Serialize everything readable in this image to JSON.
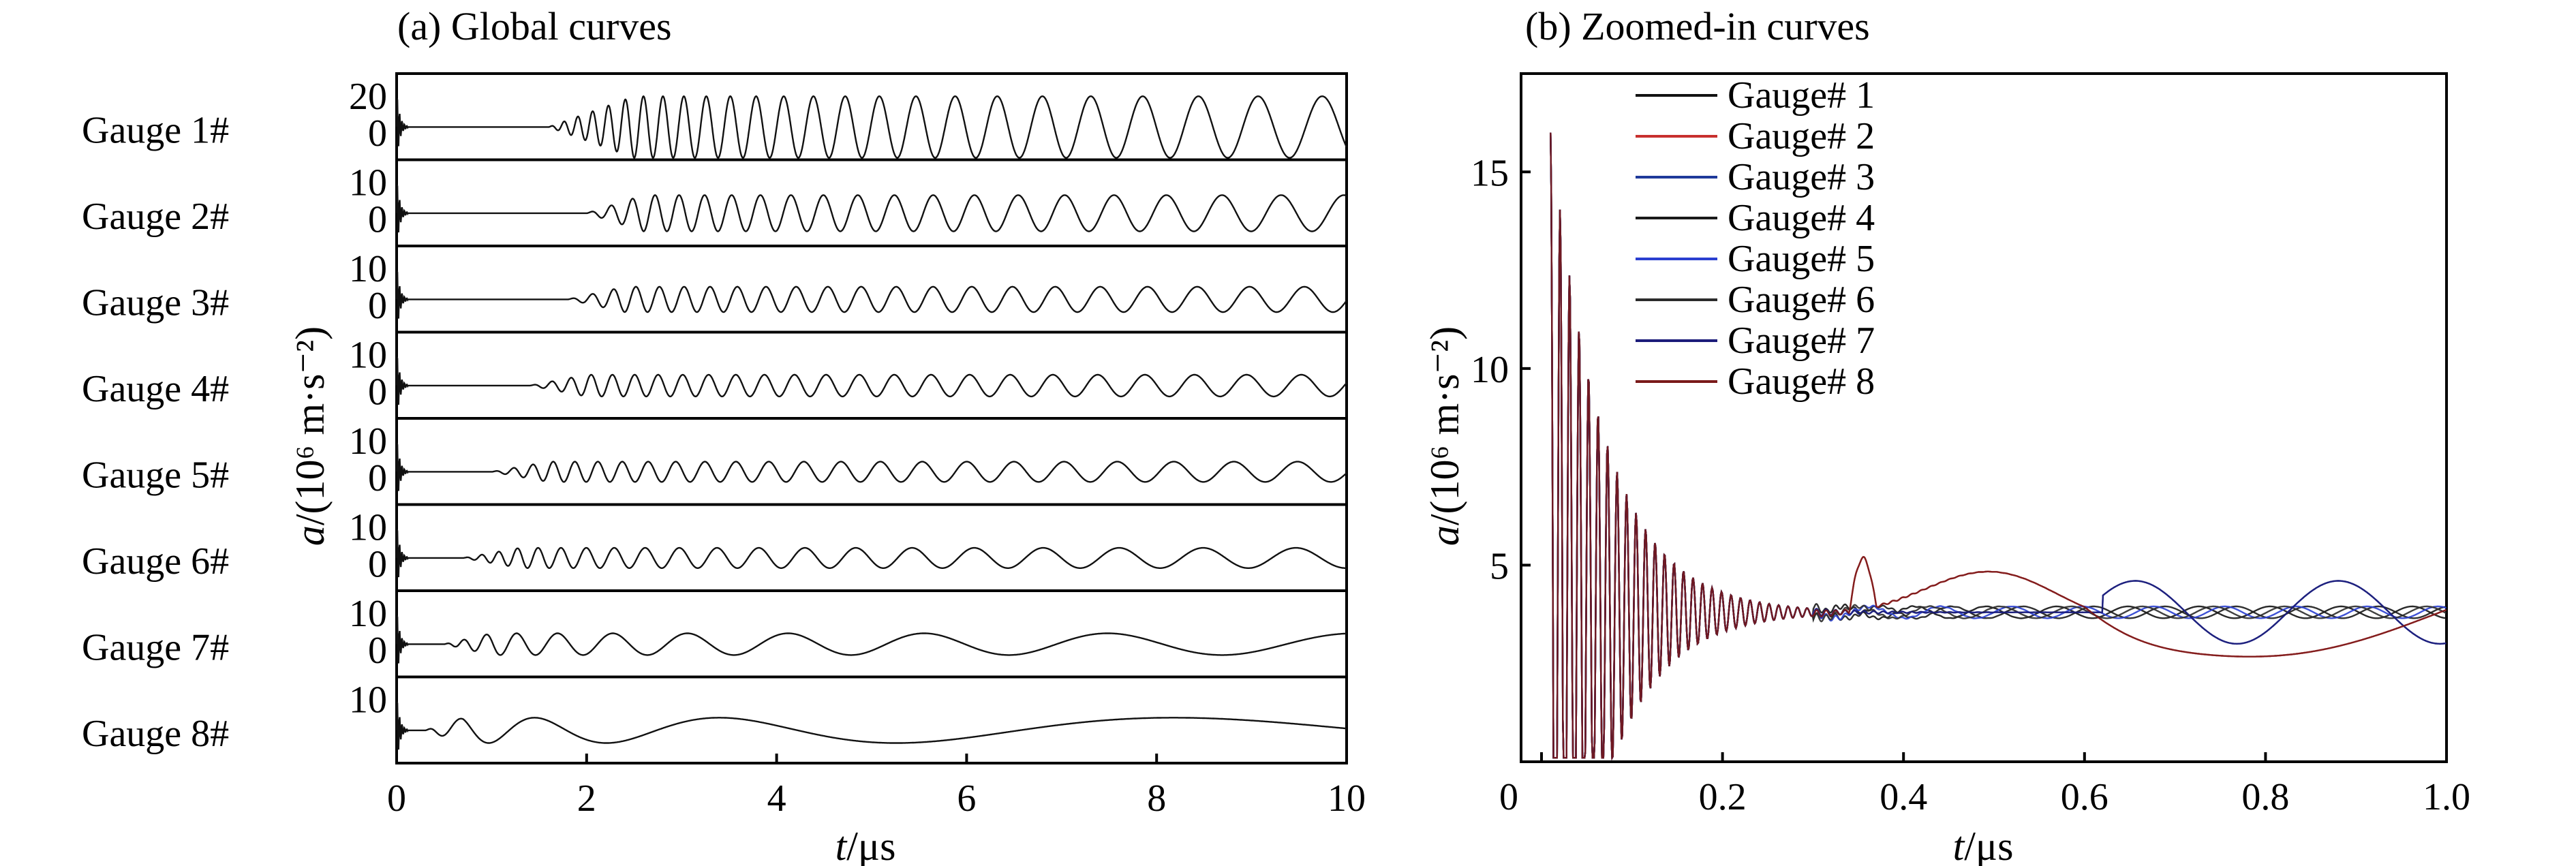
{
  "chart_data": [
    {
      "panel": "a",
      "type": "line",
      "title": "(a) Global curves",
      "xlabel_italic": "t",
      "xlabel_unit": "/μs",
      "ylabel_italic": "a",
      "ylabel_unit": "/(10⁶ m·s⁻²)",
      "xlim": [
        0,
        10
      ],
      "xticks": [
        "0",
        "2",
        "4",
        "6",
        "8",
        "10"
      ],
      "grid": false,
      "rows": [
        {
          "label": "Gauge 1#",
          "yticks": [
            "20",
            "0"
          ]
        },
        {
          "label": "Gauge 2#",
          "yticks": [
            "10",
            "0"
          ]
        },
        {
          "label": "Gauge 3#",
          "yticks": [
            "10",
            "0"
          ]
        },
        {
          "label": "Gauge 4#",
          "yticks": [
            "10",
            "0"
          ]
        },
        {
          "label": "Gauge 5#",
          "yticks": [
            "10",
            "0"
          ]
        },
        {
          "label": "Gauge 6#",
          "yticks": [
            "10",
            "0"
          ]
        },
        {
          "label": "Gauge 7#",
          "yticks": [
            "10",
            "0"
          ]
        },
        {
          "label": "Gauge 8#",
          "yticks": [
            "10"
          ]
        }
      ],
      "series_shape": [
        {
          "spike_t": 0.05,
          "calm_until": 1.6,
          "ring_start": 2.2,
          "amp": 0.85,
          "period_start": 0.17,
          "period_growth": 0.07
        },
        {
          "spike_t": 0.05,
          "calm_until": 2.0,
          "ring_start": 2.3,
          "amp": 0.5,
          "period_start": 0.22,
          "period_growth": 0.06
        },
        {
          "spike_t": 0.05,
          "calm_until": 1.8,
          "ring_start": 2.1,
          "amp": 0.35,
          "period_start": 0.22,
          "period_growth": 0.05
        },
        {
          "spike_t": 0.05,
          "calm_until": 1.4,
          "ring_start": 1.7,
          "amp": 0.3,
          "period_start": 0.2,
          "period_growth": 0.05
        },
        {
          "spike_t": 0.05,
          "calm_until": 1.0,
          "ring_start": 1.3,
          "amp": 0.28,
          "period_start": 0.2,
          "period_growth": 0.06
        },
        {
          "spike_t": 0.05,
          "calm_until": 0.7,
          "ring_start": 1.0,
          "amp": 0.28,
          "period_start": 0.18,
          "period_growth": 0.1
        },
        {
          "spike_t": 0.05,
          "calm_until": 0.5,
          "ring_start": 0.7,
          "amp": 0.3,
          "period_start": 0.2,
          "period_growth": 0.3
        },
        {
          "spike_t": 0.05,
          "calm_until": 0.3,
          "ring_start": 0.4,
          "amp": 0.35,
          "period_start": 0.25,
          "period_growth": 0.9
        }
      ]
    },
    {
      "panel": "b",
      "type": "line",
      "title": "(b) Zoomed-in curves",
      "xlabel_italic": "t",
      "xlabel_unit": "/μs",
      "ylabel_italic": "a",
      "ylabel_unit": "/(10⁶ m·s⁻²)",
      "xlim": [
        0,
        1.0
      ],
      "ylim": [
        0,
        17.5
      ],
      "xticks": [
        "0",
        "0.2",
        "0.4",
        "0.6",
        "0.8",
        "1.0"
      ],
      "yticks": [
        5,
        10,
        15
      ],
      "grid": false,
      "legend_placement": "top-left",
      "ringdown": {
        "peak": 16,
        "baseline": 3.8,
        "decay": 0.06,
        "period": 0.0105,
        "start": 0.01
      },
      "series": [
        {
          "name": "Gauge# 1",
          "color": "#111111",
          "variant": 0
        },
        {
          "name": "Gauge# 2",
          "color": "#c8302e",
          "variant": 1
        },
        {
          "name": "Gauge# 3",
          "color": "#1f3a9a",
          "variant": 2
        },
        {
          "name": "Gauge# 4",
          "color": "#1a1a1a",
          "variant": 3
        },
        {
          "name": "Gauge# 5",
          "color": "#2a3fd0",
          "variant": 4
        },
        {
          "name": "Gauge# 6",
          "color": "#2b2b2b",
          "variant": 5
        },
        {
          "name": "Gauge# 7",
          "color": "#1c1c7a",
          "variant": 6
        },
        {
          "name": "Gauge# 8",
          "color": "#7a1a1a",
          "variant": 7
        }
      ]
    }
  ]
}
